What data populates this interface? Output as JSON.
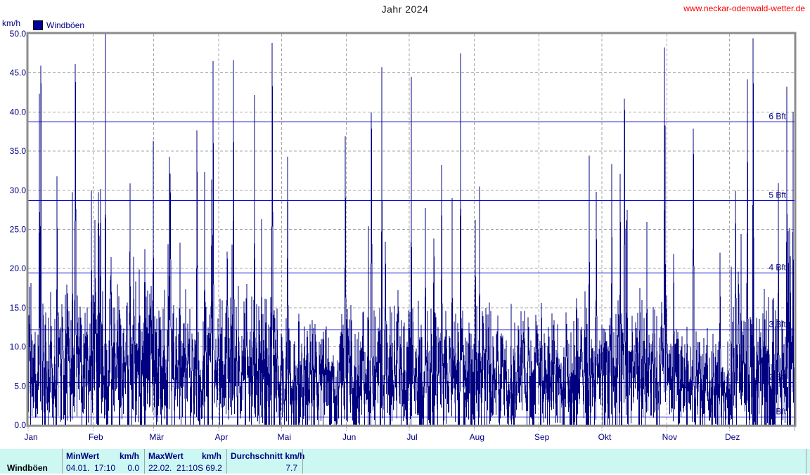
{
  "header": {
    "title": "Jahr 2024",
    "site_url": "www.neckar-odenwald-wetter.de"
  },
  "colors": {
    "series": "#000080",
    "legend_swatch": "#000099",
    "beaufort_line": "#0000cc",
    "grid": "#a6a6a6",
    "plot_border": "#8c8c8c",
    "axis_text": "#000080",
    "title_text": "#1c1c1c",
    "url_text": "#ff0000",
    "table_background": "#ccf7f2"
  },
  "chart_data": {
    "type": "line",
    "title": "Jahr 2024",
    "ylabel": "km/h",
    "ylim": [
      0,
      50
    ],
    "grid": true,
    "legend_position": "top-left",
    "y_ticks": [
      "0.0",
      "5.0",
      "10.0",
      "15.0",
      "20.0",
      "25.0",
      "30.0",
      "35.0",
      "40.0",
      "45.0",
      "50.0"
    ],
    "x_categories": [
      "Jan",
      "Feb",
      "Mär",
      "Apr",
      "Mai",
      "Jun",
      "Jul",
      "Aug",
      "Sep",
      "Okt",
      "Nov",
      "Dez"
    ],
    "month_days": [
      31,
      29,
      31,
      30,
      31,
      30,
      31,
      31,
      30,
      31,
      30,
      31
    ],
    "beaufort_lines": [
      {
        "label": "1 Bft",
        "kmh": 1.1
      },
      {
        "label": "2 Bft",
        "kmh": 5.5
      },
      {
        "label": "3 Bft",
        "kmh": 12.2
      },
      {
        "label": "4 Bft",
        "kmh": 19.5
      },
      {
        "label": "5 Bft",
        "kmh": 28.7
      },
      {
        "label": "6 Bft",
        "kmh": 38.8
      }
    ],
    "series": [
      {
        "name": "Windböen",
        "color": "#000080",
        "sampling": "10-minute wind gusts over the year, drawn as dense min-max spikes; values above 50 km/h are clipped at the plot top",
        "monthly_envelope": [
          {
            "month": "Jan",
            "base": 14,
            "peak": 53,
            "gust_prob": 0.1,
            "bold_prob": 0.07
          },
          {
            "month": "Feb",
            "base": 16,
            "peak": 60,
            "gust_prob": 0.12,
            "bold_prob": 0.08
          },
          {
            "month": "Mär",
            "base": 13,
            "peak": 47,
            "gust_prob": 0.08,
            "bold_prob": 0.06
          },
          {
            "month": "Apr",
            "base": 14,
            "peak": 52,
            "gust_prob": 0.1,
            "bold_prob": 0.07
          },
          {
            "month": "Mai",
            "base": 12,
            "peak": 47,
            "gust_prob": 0.08,
            "bold_prob": 0.06
          },
          {
            "month": "Jun",
            "base": 12,
            "peak": 50,
            "gust_prob": 0.08,
            "bold_prob": 0.06
          },
          {
            "month": "Jul",
            "base": 12,
            "peak": 51,
            "gust_prob": 0.08,
            "bold_prob": 0.06
          },
          {
            "month": "Aug",
            "base": 12,
            "peak": 47,
            "gust_prob": 0.07,
            "bold_prob": 0.06
          },
          {
            "month": "Sep",
            "base": 12,
            "peak": 49,
            "gust_prob": 0.07,
            "bold_prob": 0.06
          },
          {
            "month": "Okt",
            "base": 12,
            "peak": 52,
            "gust_prob": 0.08,
            "bold_prob": 0.06
          },
          {
            "month": "Nov",
            "base": 10,
            "peak": 37,
            "gust_prob": 0.04,
            "bold_prob": 0.03
          },
          {
            "month": "Dez",
            "base": 14,
            "peak": 53,
            "gust_prob": 0.11,
            "bold_prob": 0.08
          }
        ]
      }
    ],
    "stats": {
      "min": {
        "label": "MinWert",
        "unit": "km/h",
        "date": "04.01. 17:10",
        "value_kmh": 0.0
      },
      "max": {
        "label": "MaxWert",
        "unit": "km/h",
        "date": "22.02. 21:10",
        "direction": "S",
        "value_kmh": 69.2
      },
      "mean": {
        "label": "Durchschnitt km/h",
        "value_kmh": 7.7
      }
    }
  },
  "table": {
    "row_label": "Windböen",
    "min": {
      "header_left": "MinWert",
      "header_right": "km/h",
      "value_left": "04.01.  17:10",
      "value_right": "0.0"
    },
    "max": {
      "header_left": "MaxWert",
      "header_right": "km/h",
      "value_left": "22.02.  21:10",
      "value_right": "S 69.2"
    },
    "avg": {
      "header_left": "Durchschnitt km/h",
      "header_right": "",
      "value_left": "",
      "value_right": "7.7"
    }
  }
}
